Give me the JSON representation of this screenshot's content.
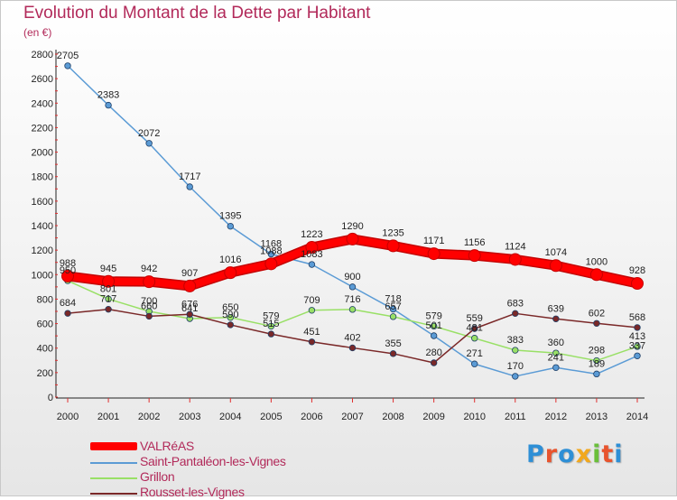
{
  "title": "Evolution du Montant de la Dette par Habitant",
  "subtitle": "(en €)",
  "logo": {
    "text": "Proxiti",
    "colors": [
      "#2e8fd6",
      "#e8542e",
      "#2e8fd6",
      "#f2a81d",
      "#6abf3a",
      "#e8542e",
      "#2e8fd6"
    ]
  },
  "chart_data": {
    "type": "line",
    "x": [
      "2000",
      "2001",
      "2002",
      "2003",
      "2004",
      "2005",
      "2006",
      "2007",
      "2008",
      "2009",
      "2010",
      "2011",
      "2012",
      "2013",
      "2014"
    ],
    "ylim": [
      0,
      2800
    ],
    "yticks": [
      0,
      200,
      400,
      600,
      800,
      1000,
      1200,
      1400,
      1600,
      1800,
      2000,
      2200,
      2400,
      2600,
      2800
    ],
    "grid": false,
    "legend_position": "bottom-left",
    "series": [
      {
        "name": "VALRéAS",
        "color": "#ff0000",
        "width": "thick",
        "marker": "large",
        "values": [
          988,
          945,
          942,
          907,
          1016,
          1088,
          1223,
          1290,
          1235,
          1171,
          1156,
          1124,
          1074,
          1000,
          928
        ]
      },
      {
        "name": "Saint-Pantaléon-les-Vignes",
        "color": "#5b9bd5",
        "width": "thin",
        "marker": "small",
        "values": [
          2705,
          2383,
          2072,
          1717,
          1395,
          1168,
          1083,
          900,
          718,
          501,
          271,
          170,
          241,
          189,
          337
        ]
      },
      {
        "name": "Grillon",
        "color": "#99e066",
        "width": "thin",
        "marker": "small",
        "values": [
          950,
          801,
          700,
          641,
          650,
          579,
          709,
          716,
          657,
          579,
          481,
          383,
          360,
          298,
          413
        ]
      },
      {
        "name": "Rousset-les-Vignes",
        "color": "#7a2828",
        "width": "thin",
        "marker": "small",
        "values": [
          684,
          717,
          660,
          676,
          590,
          515,
          451,
          402,
          355,
          280,
          559,
          683,
          639,
          602,
          568
        ]
      }
    ]
  }
}
